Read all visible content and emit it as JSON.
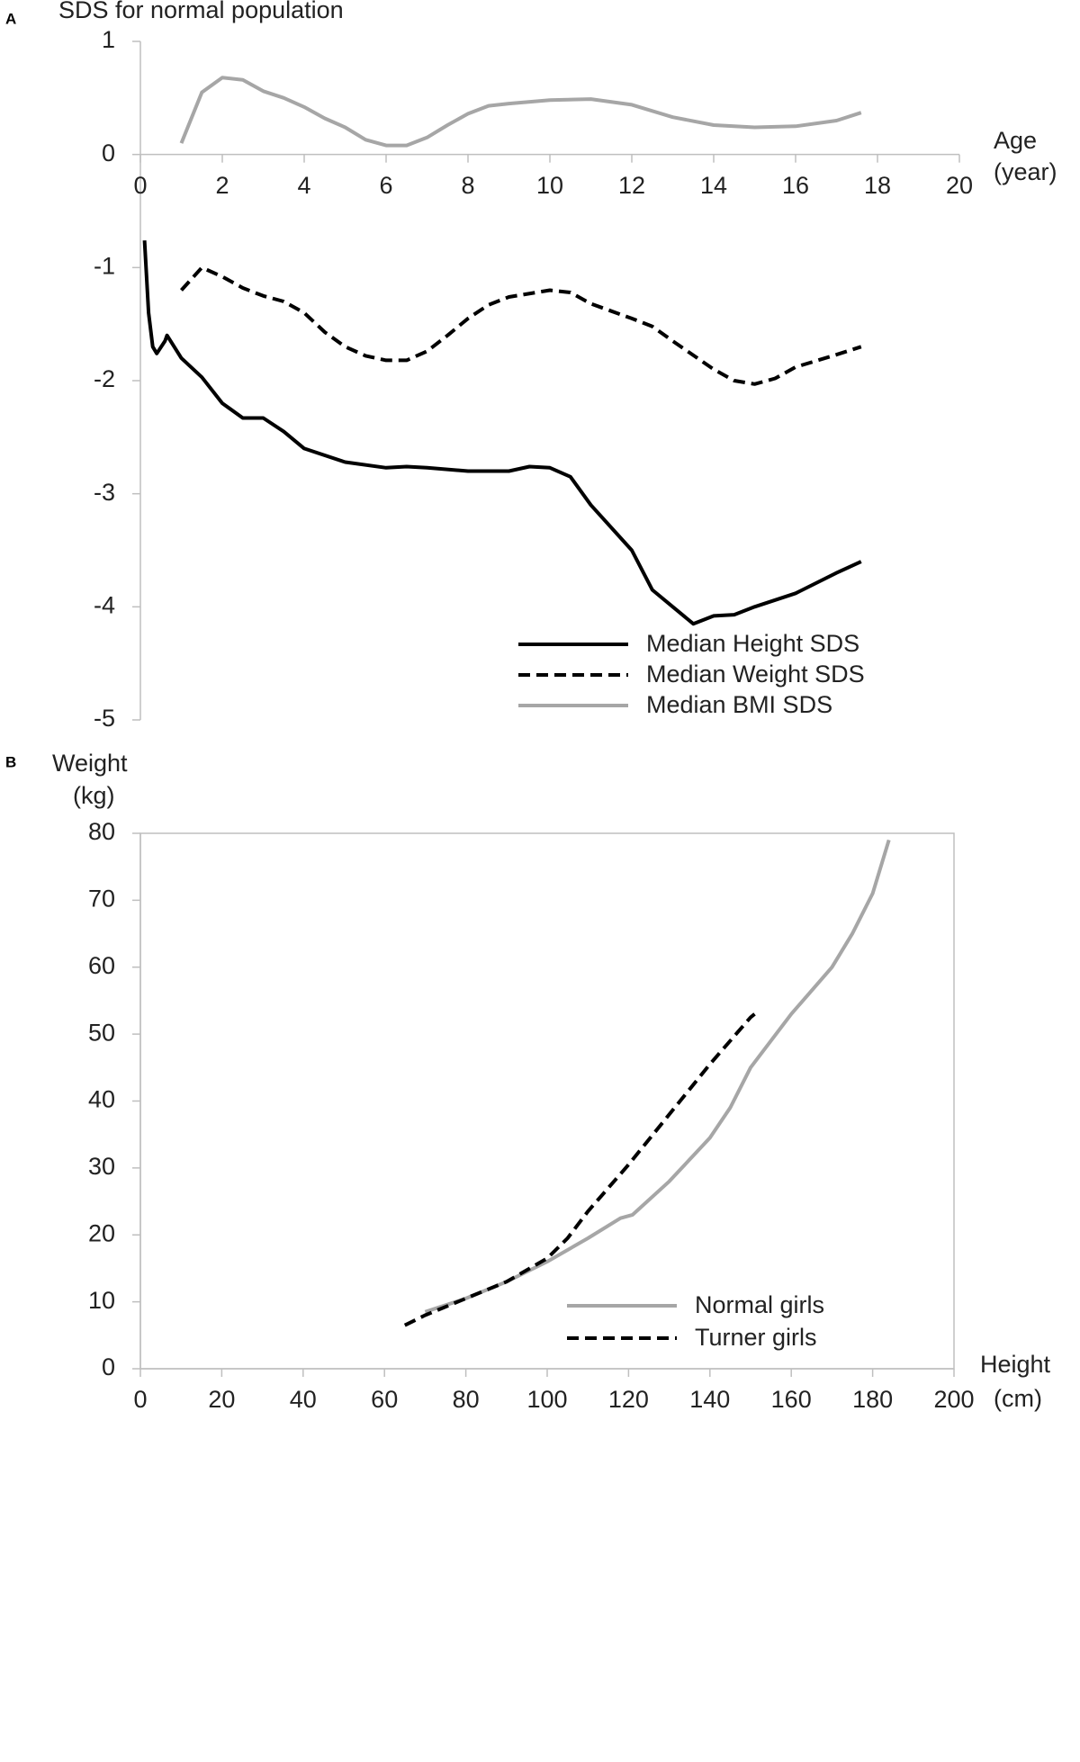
{
  "chart_data": [
    {
      "type": "line",
      "panel": "A",
      "title": "SDS for normal population",
      "x_label": [
        "Age",
        "(year)"
      ],
      "xlim": [
        0,
        20
      ],
      "xticks": [
        0,
        2,
        4,
        6,
        8,
        10,
        12,
        14,
        16,
        18,
        20
      ],
      "ylim": [
        -5,
        1
      ],
      "yticks": [
        1,
        0,
        -1,
        -2,
        -3,
        -4,
        -5
      ],
      "legend": "lower right",
      "series": [
        {
          "name": "Median Height SDS",
          "color": "#000000",
          "style": "solid",
          "x": [
            0.1,
            0.2,
            0.3,
            0.4,
            0.6,
            0.65,
            1,
            1.5,
            2,
            2.5,
            3,
            3.5,
            4,
            5,
            6,
            6.5,
            7,
            8,
            9,
            9.5,
            10,
            10.5,
            11,
            12,
            12.5,
            13,
            13.5,
            14,
            14.5,
            15,
            16,
            17,
            17.6
          ],
          "values": [
            -0.76,
            -1.4,
            -1.7,
            -1.76,
            -1.65,
            -1.6,
            -1.8,
            -1.97,
            -2.2,
            -2.33,
            -2.33,
            -2.45,
            -2.6,
            -2.72,
            -2.77,
            -2.76,
            -2.77,
            -2.8,
            -2.8,
            -2.76,
            -2.77,
            -2.85,
            -3.1,
            -3.5,
            -3.85,
            -4.0,
            -4.15,
            -4.08,
            -4.07,
            -4.0,
            -3.88,
            -3.7,
            -3.6
          ]
        },
        {
          "name": "Median Weight SDS",
          "color": "#000000",
          "style": "dashed",
          "x": [
            1,
            1.5,
            2,
            2.5,
            3,
            3.5,
            4,
            4.5,
            5,
            5.5,
            6,
            6.5,
            7,
            7.5,
            8,
            8.5,
            9,
            10,
            10.5,
            11,
            12,
            12.5,
            13,
            14,
            14.5,
            15,
            15.5,
            16,
            17,
            17.6
          ],
          "values": [
            -1.2,
            -1.0,
            -1.08,
            -1.18,
            -1.25,
            -1.3,
            -1.4,
            -1.57,
            -1.7,
            -1.78,
            -1.82,
            -1.82,
            -1.74,
            -1.6,
            -1.45,
            -1.33,
            -1.26,
            -1.2,
            -1.22,
            -1.32,
            -1.45,
            -1.52,
            -1.65,
            -1.9,
            -2.0,
            -2.03,
            -1.98,
            -1.88,
            -1.77,
            -1.7
          ]
        },
        {
          "name": "Median BMI SDS",
          "color": "#a6a6a6",
          "style": "solid",
          "x": [
            1,
            1.5,
            2,
            2.5,
            3,
            3.5,
            4,
            4.5,
            5,
            5.5,
            6,
            6.5,
            7,
            7.5,
            8,
            8.5,
            9,
            10,
            11,
            12,
            13,
            14,
            15,
            16,
            17,
            17.6
          ],
          "values": [
            0.1,
            0.55,
            0.68,
            0.66,
            0.56,
            0.5,
            0.42,
            0.32,
            0.24,
            0.13,
            0.08,
            0.08,
            0.15,
            0.26,
            0.36,
            0.43,
            0.45,
            0.48,
            0.49,
            0.44,
            0.33,
            0.26,
            0.24,
            0.25,
            0.3,
            0.37
          ]
        }
      ]
    },
    {
      "type": "line",
      "panel": "B",
      "y_label": [
        "Weight",
        "(kg)"
      ],
      "x_label": [
        "Height",
        "(cm)"
      ],
      "xlim": [
        0,
        200
      ],
      "xticks": [
        0,
        20,
        40,
        60,
        80,
        100,
        120,
        140,
        160,
        180,
        200
      ],
      "ylim": [
        0,
        80
      ],
      "yticks": [
        80,
        70,
        60,
        50,
        40,
        30,
        20,
        10,
        0
      ],
      "legend": "lower right",
      "series": [
        {
          "name": "Normal girls",
          "color": "#a6a6a6",
          "style": "solid",
          "x": [
            70,
            80,
            90,
            100,
            110,
            118,
            121,
            130,
            140,
            145,
            150,
            155,
            160,
            170,
            175,
            180,
            184
          ],
          "values": [
            8.5,
            10.5,
            13,
            16,
            19.5,
            22.5,
            23,
            28,
            34.5,
            39,
            45,
            49,
            53,
            60,
            65,
            71,
            79
          ]
        },
        {
          "name": "Turner girls",
          "color": "#000000",
          "style": "dashed",
          "x": [
            65,
            70,
            80,
            90,
            100,
            105,
            110,
            120,
            130,
            140,
            150,
            151
          ],
          "values": [
            6.5,
            8,
            10.5,
            13,
            16.5,
            19.5,
            23.5,
            30.5,
            38,
            45.5,
            52.5,
            53
          ]
        }
      ]
    }
  ]
}
